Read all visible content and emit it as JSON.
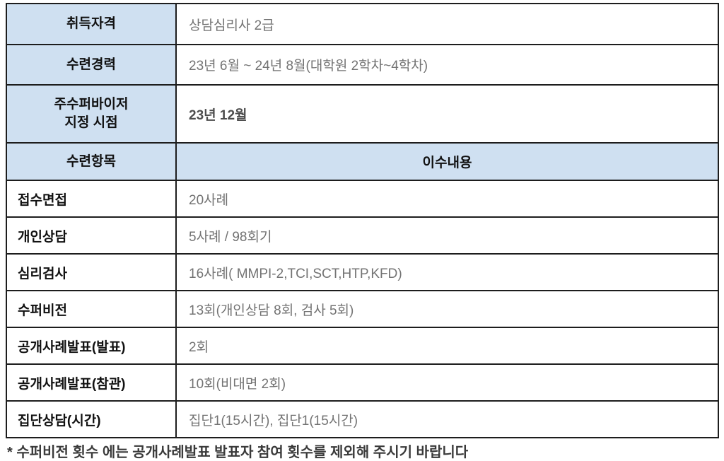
{
  "colors": {
    "header_bg": "#cfe0f1",
    "border": "#1d1d1d",
    "label_text": "#111111",
    "value_text": "#737373",
    "value_bold_text": "#4d4d4d"
  },
  "table": {
    "rows": [
      {
        "label": "취득자격",
        "value": "상담심리사 2급",
        "type": "info"
      },
      {
        "label": "수련경력",
        "value": "23년 6월 ~ 24년 8월(대학원 2학차~4학차)",
        "type": "info"
      },
      {
        "label": "주수퍼바이저\n지정 시점",
        "value": "23년 12월",
        "type": "info-bold"
      },
      {
        "label": "수련항목",
        "value": "이수내용",
        "type": "header"
      },
      {
        "label": "접수면접",
        "value": "20사례",
        "type": "item"
      },
      {
        "label": "개인상담",
        "value": "5사례 / 98회기",
        "type": "item"
      },
      {
        "label": "심리검사",
        "value": "16사례( MMPI-2,TCI,SCT,HTP,KFD)",
        "type": "item"
      },
      {
        "label": "수퍼비전",
        "value": "13회(개인상담 8회, 검사 5회)",
        "type": "item"
      },
      {
        "label": "공개사례발표(발표)",
        "value": "2회",
        "type": "item"
      },
      {
        "label": "공개사례발표(참관)",
        "value": "10회(비대면 2회)",
        "type": "item"
      },
      {
        "label": "집단상담(시간)",
        "value": "집단1(15시간), 집단1(15시간)",
        "type": "item"
      }
    ]
  },
  "footnote": {
    "text": "* 수퍼비전 횟수 에는 공개사례발표 발표자 참여 횟수를 제외해 주시기 바랍니다",
    "truncated_visible": true
  }
}
